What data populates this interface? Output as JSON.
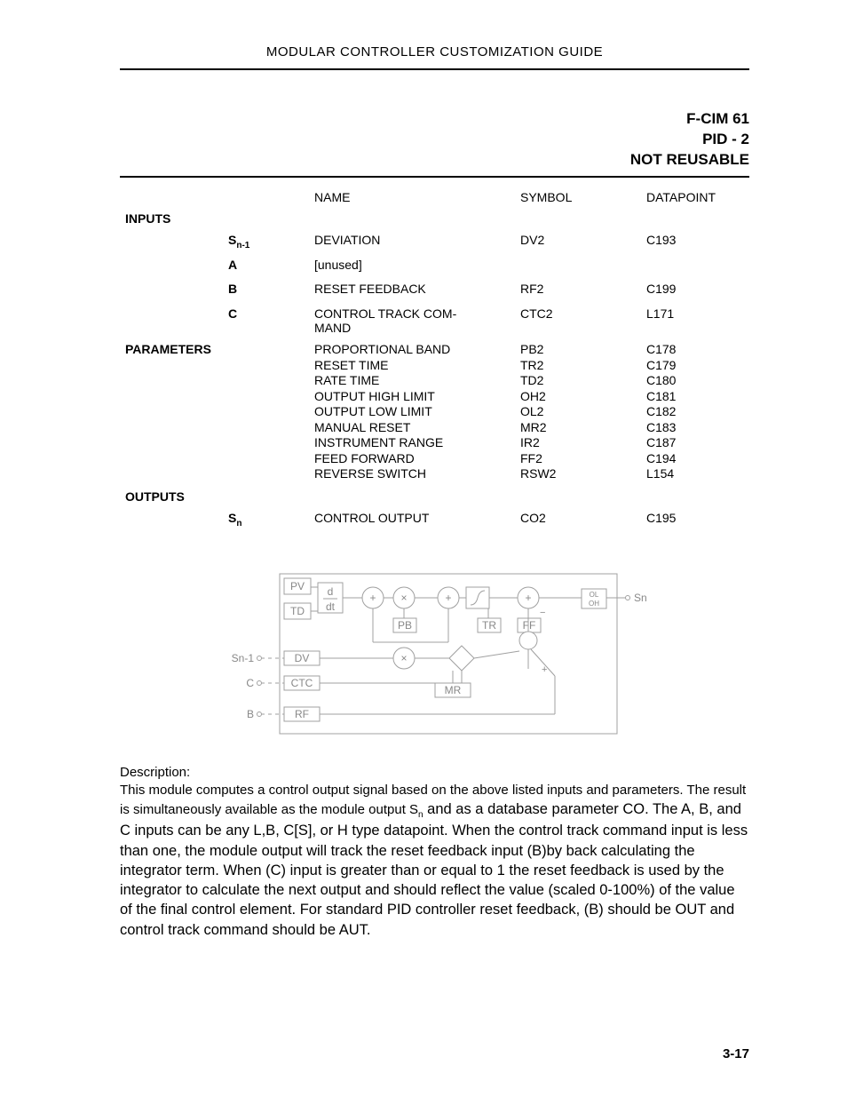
{
  "header": "MODULAR CONTROLLER CUSTOMIZATION GUIDE",
  "subhead": {
    "l1": "F-CIM 61",
    "l2": "PID - 2",
    "l3": "NOT REUSABLE"
  },
  "colhead": {
    "name": "NAME",
    "symbol": "SYMBOL",
    "datapoint": "DATAPOINT"
  },
  "sections": {
    "inputs_label": "INPUTS",
    "params_label": "PARAMETERS",
    "outputs_label": "OUTPUTS"
  },
  "inputs": [
    {
      "sig": "S",
      "sub": "n-1",
      "name": "DEVIATION",
      "sym": "DV2",
      "dp": "C193"
    },
    {
      "sig": "A",
      "sub": "",
      "name": "[unused]",
      "sym": "",
      "dp": ""
    },
    {
      "sig": "B",
      "sub": "",
      "name": "RESET FEEDBACK",
      "sym": "RF2",
      "dp": "C199"
    },
    {
      "sig": "C",
      "sub": "",
      "name": "CONTROL TRACK COM-\nMAND",
      "sym": "CTC2",
      "dp": "L171"
    }
  ],
  "parameters": [
    {
      "name": "PROPORTIONAL BAND",
      "sym": "PB2",
      "dp": "C178"
    },
    {
      "name": "RESET TIME",
      "sym": "TR2",
      "dp": "C179"
    },
    {
      "name": "RATE TIME",
      "sym": "TD2",
      "dp": "C180"
    },
    {
      "name": "OUTPUT HIGH LIMIT",
      "sym": "OH2",
      "dp": "C181"
    },
    {
      "name": "OUTPUT LOW LIMIT",
      "sym": "OL2",
      "dp": "C182"
    },
    {
      "name": "MANUAL RESET",
      "sym": "MR2",
      "dp": "C183"
    },
    {
      "name": "INSTRUMENT RANGE",
      "sym": "IR2",
      "dp": "C187"
    },
    {
      "name": "FEED FORWARD",
      "sym": "FF2",
      "dp": "C194"
    },
    {
      "name": "REVERSE SWITCH",
      "sym": "RSW2",
      "dp": "L154"
    }
  ],
  "outputs": [
    {
      "sig": "S",
      "sub": "n",
      "name": "CONTROL OUTPUT",
      "sym": "CO2",
      "dp": "C195"
    }
  ],
  "diagram": {
    "stroke": "#a0a0a0",
    "nodes": {
      "pv": {
        "label": "PV"
      },
      "td": {
        "label": "TD"
      },
      "ddt": {
        "top": "d",
        "bot": "dt"
      },
      "pb": {
        "label": "PB"
      },
      "tr": {
        "label": "TR"
      },
      "ff": {
        "label": "FF"
      },
      "olh": {
        "top": "OL",
        "bot": "OH"
      },
      "dv": {
        "label": "DV"
      },
      "ctc": {
        "label": "CTC"
      },
      "rf": {
        "label": "RF"
      },
      "mr": {
        "label": "MR"
      }
    },
    "sideLabels": {
      "sn1": "Sn-1",
      "c": "C",
      "b": "B",
      "sn": "Sn"
    }
  },
  "description": {
    "label": "Description:",
    "line1": "This module computes a control output signal based on the above listed inputs and parameters.",
    "line2_a": "The result is simultaneously available as the module output S",
    "line2_sub": "n",
    "line2_b": " and as a database parameter CO. The A, B, and C inputs can be any L,B, C[S], or H type datapoint. When the control track command input is less than one, the module output will track the reset feedback input (B)by back calculating the integrator term. When (C) input is greater than or equal to 1 the reset feedback is used by the integrator to calculate the next output and should reflect the value (scaled 0-100%) of the value of the final control element. For standard PID controller reset feedback, (B) should be OUT and control track command should be AUT."
  },
  "pagenum": "3-17"
}
